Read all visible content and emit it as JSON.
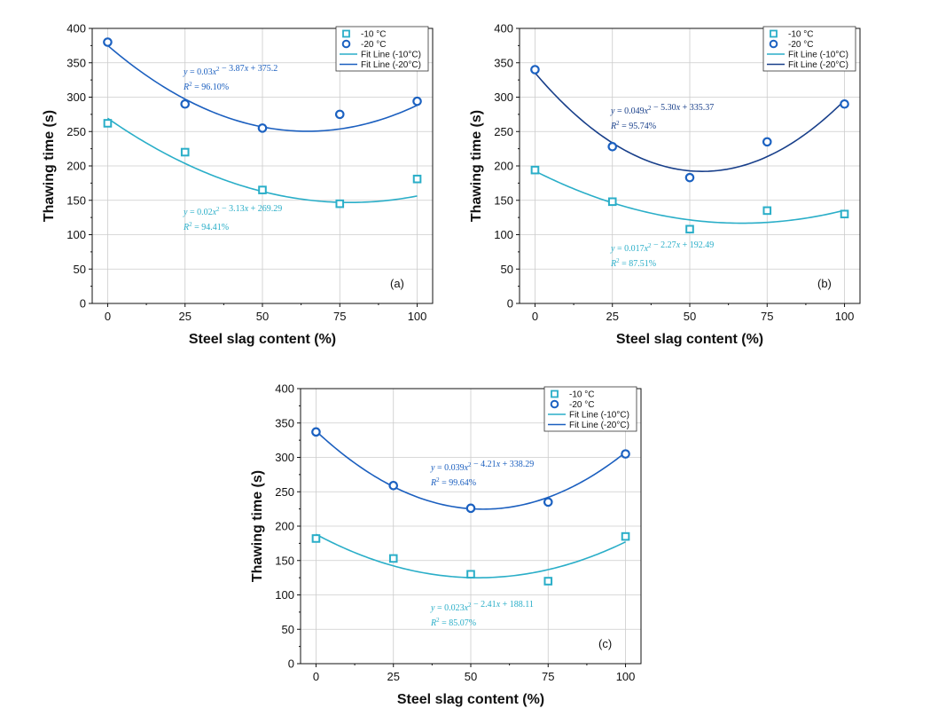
{
  "colors": {
    "minus10": "#2aaec8",
    "minus20": "#1b61c1",
    "fit10": "#2aaec8",
    "fit20": "#1b5fbf",
    "fit20_dark": "#183f8a",
    "grid": "#cccccc"
  },
  "chart_data": [
    {
      "type": "scatter",
      "panel_label": "(a)",
      "xlabel": "Steel slag content (%)",
      "ylabel": "Thawing time (s)",
      "xlim": [
        -5,
        105
      ],
      "ylim": [
        0,
        400
      ],
      "x_ticks": [
        0,
        25,
        50,
        75,
        100
      ],
      "y_ticks": [
        0,
        50,
        100,
        150,
        200,
        250,
        300,
        350,
        400
      ],
      "legend": [
        "-10 °C",
        "-20 °C",
        "Fit Line (-10°C)",
        "Fit Line (-20°C)"
      ],
      "series": [
        {
          "name": "-10 °C",
          "marker": "square",
          "x": [
            0,
            25,
            50,
            75,
            100
          ],
          "values": [
            262,
            220,
            165,
            145,
            181
          ]
        },
        {
          "name": "-20 °C",
          "marker": "circle",
          "x": [
            0,
            25,
            50,
            75,
            100
          ],
          "values": [
            380,
            290,
            255,
            275,
            294
          ]
        }
      ],
      "fits": [
        {
          "name": "Fit Line (-10°C)",
          "a": 0.02,
          "b": -3.13,
          "c": 269.29,
          "eq_a": "0.02",
          "eq_b": "3.13",
          "eq_c": "269.29",
          "r2": "94.41%"
        },
        {
          "name": "Fit Line (-20°C)",
          "a": 0.03,
          "b": -3.87,
          "c": 375.2,
          "eq_a": "0.03",
          "eq_b": "3.87",
          "eq_c": "375.2",
          "r2": "96.10%"
        }
      ]
    },
    {
      "type": "scatter",
      "panel_label": "(b)",
      "xlabel": "Steel slag content (%)",
      "ylabel": "Thawing time (s)",
      "xlim": [
        -5,
        105
      ],
      "ylim": [
        0,
        400
      ],
      "x_ticks": [
        0,
        25,
        50,
        75,
        100
      ],
      "y_ticks": [
        0,
        50,
        100,
        150,
        200,
        250,
        300,
        350,
        400
      ],
      "legend": [
        "-10 °C",
        "-20 °C",
        "Fit Line (-10°C)",
        "Fit Line (-20°C)"
      ],
      "series": [
        {
          "name": "-10 °C",
          "marker": "square",
          "x": [
            0,
            25,
            50,
            75,
            100
          ],
          "values": [
            194,
            148,
            108,
            135,
            130
          ]
        },
        {
          "name": "-20 °C",
          "marker": "circle",
          "x": [
            0,
            25,
            50,
            75,
            100
          ],
          "values": [
            340,
            228,
            183,
            235,
            290
          ]
        }
      ],
      "fits": [
        {
          "name": "Fit Line (-10°C)",
          "a": 0.017,
          "b": -2.27,
          "c": 192.49,
          "eq_a": "0.017",
          "eq_b": "2.27",
          "eq_c": "192.49",
          "r2": "87.51%"
        },
        {
          "name": "Fit Line (-20°C)",
          "a": 0.049,
          "b": -5.3,
          "c": 335.37,
          "eq_a": "0.049",
          "eq_b": "5.30",
          "eq_c": "335.37",
          "r2": "95.74%"
        }
      ]
    },
    {
      "type": "scatter",
      "panel_label": "(c)",
      "xlabel": "Steel slag content (%)",
      "ylabel": "Thawing time (s)",
      "xlim": [
        -5,
        105
      ],
      "ylim": [
        0,
        400
      ],
      "x_ticks": [
        0,
        25,
        50,
        75,
        100
      ],
      "y_ticks": [
        0,
        50,
        100,
        150,
        200,
        250,
        300,
        350,
        400
      ],
      "legend": [
        "-10 °C",
        "-20 °C",
        "Fit Line (-10°C)",
        "Fit Line (-20°C)"
      ],
      "series": [
        {
          "name": "-10 °C",
          "marker": "square",
          "x": [
            0,
            25,
            50,
            75,
            100
          ],
          "values": [
            182,
            153,
            130,
            120,
            185
          ]
        },
        {
          "name": "-20 °C",
          "marker": "circle",
          "x": [
            0,
            25,
            50,
            75,
            100
          ],
          "values": [
            337,
            259,
            226,
            235,
            305
          ]
        }
      ],
      "fits": [
        {
          "name": "Fit Line (-10°C)",
          "a": 0.023,
          "b": -2.41,
          "c": 188.11,
          "eq_a": "0.023",
          "eq_b": "2.41",
          "eq_c": "188.11",
          "r2": "85.07%"
        },
        {
          "name": "Fit Line (-20°C)",
          "a": 0.039,
          "b": -4.21,
          "c": 338.29,
          "eq_a": "0.039",
          "eq_b": "4.21",
          "eq_c": "338.29",
          "r2": "99.64%"
        }
      ]
    }
  ]
}
